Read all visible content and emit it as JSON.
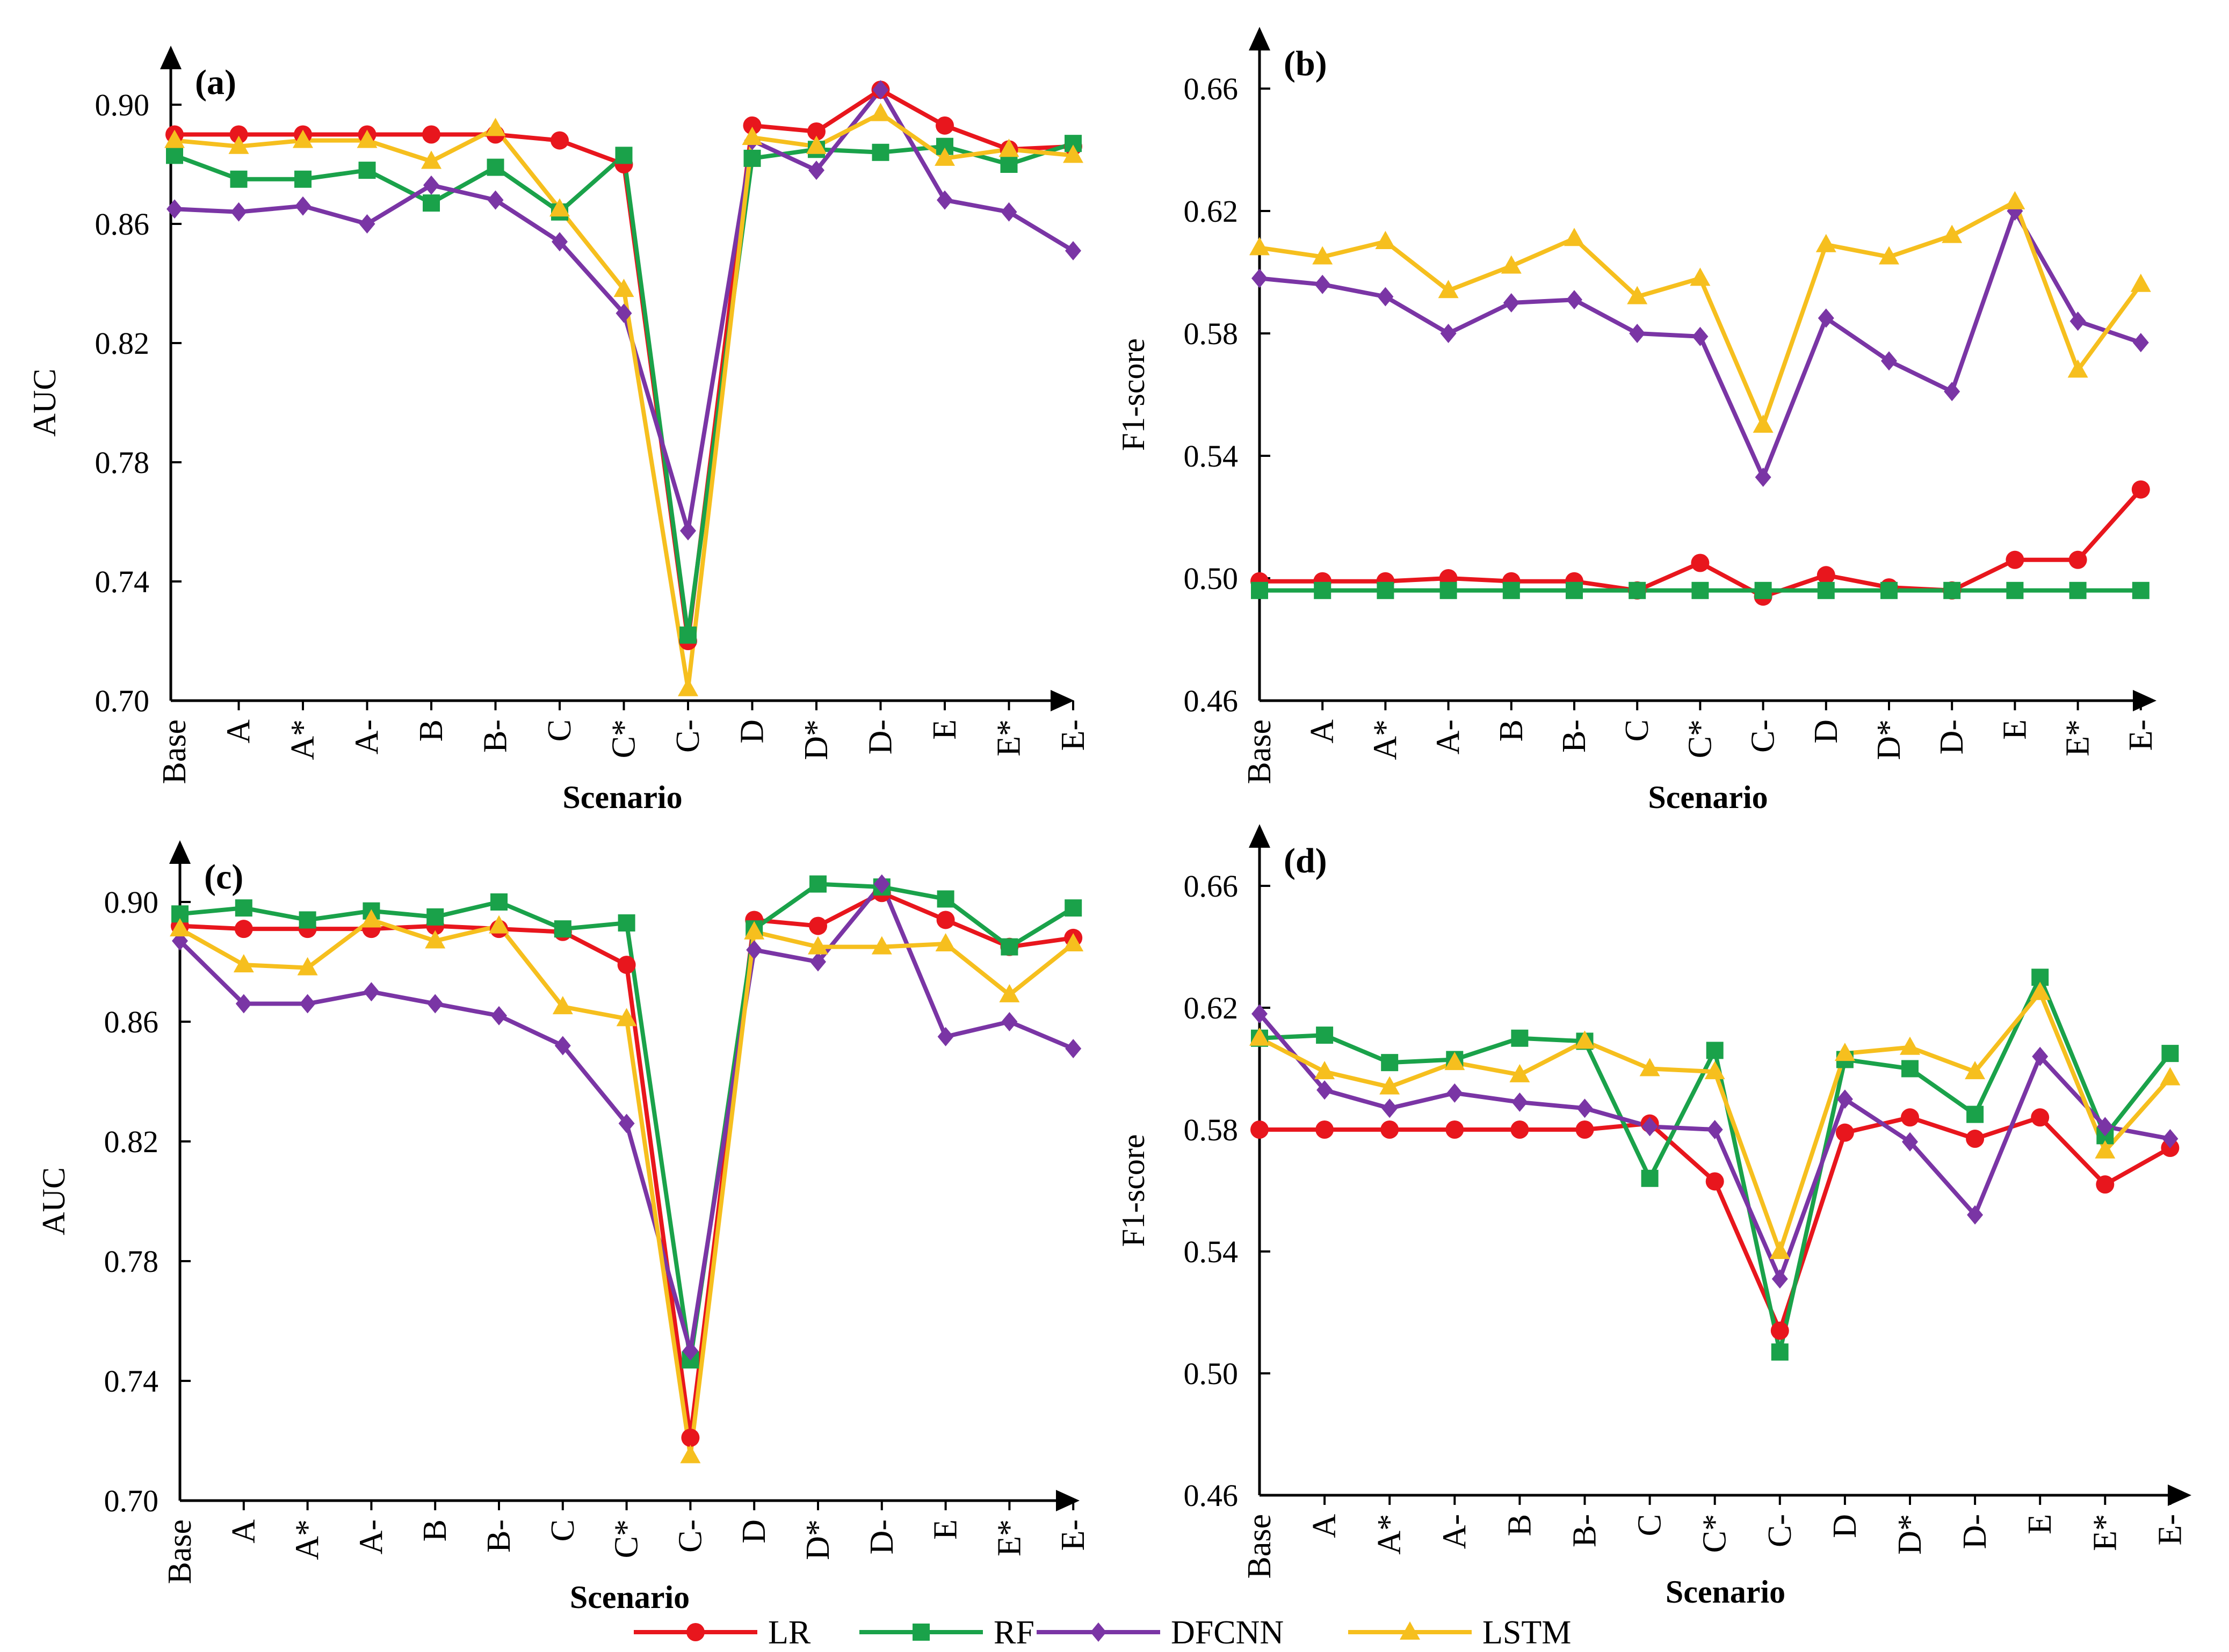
{
  "chart_data": [
    {
      "type": "line",
      "panel_label": "(a)",
      "xlabel": "Scenario",
      "ylabel": "AUC",
      "ylim": [
        0.7,
        0.92
      ],
      "yticks": [
        "0.70",
        "0.74",
        "0.78",
        "0.82",
        "0.86",
        "0.90"
      ],
      "categories": [
        "Base",
        "A",
        "A*",
        "A-",
        "B",
        "B-",
        "C",
        "C*",
        "C-",
        "D",
        "D*",
        "D-",
        "E",
        "E*",
        "E-"
      ],
      "series": [
        {
          "name": "LR",
          "values": [
            0.89,
            0.89,
            0.89,
            0.89,
            0.89,
            0.89,
            0.888,
            0.88,
            0.72,
            0.893,
            0.891,
            0.905,
            0.893,
            0.885,
            0.886
          ]
        },
        {
          "name": "RF",
          "values": [
            0.883,
            0.875,
            0.875,
            0.878,
            0.867,
            0.879,
            0.864,
            0.883,
            0.722,
            0.882,
            0.885,
            0.884,
            0.886,
            0.88,
            0.887
          ]
        },
        {
          "name": "DFCNN",
          "values": [
            0.865,
            0.864,
            0.866,
            0.86,
            0.873,
            0.868,
            0.854,
            0.83,
            0.757,
            0.888,
            0.878,
            0.905,
            0.868,
            0.864,
            0.851
          ]
        },
        {
          "name": "LSTM",
          "values": [
            0.888,
            0.886,
            0.888,
            0.888,
            0.881,
            0.892,
            0.865,
            0.838,
            0.704,
            0.889,
            0.886,
            0.897,
            0.882,
            0.885,
            0.883
          ]
        }
      ]
    },
    {
      "type": "line",
      "panel_label": "(b)",
      "xlabel": "Scenario",
      "ylabel": "F1-score",
      "ylim": [
        0.46,
        0.67
      ],
      "yticks": [
        "0.46",
        "0.50",
        "0.54",
        "0.58",
        "0.62",
        "0.66"
      ],
      "categories": [
        "Base",
        "A",
        "A*",
        "A-",
        "B",
        "B-",
        "C",
        "C*",
        "C-",
        "D",
        "D*",
        "D-",
        "E",
        "E*",
        "E-"
      ],
      "series": [
        {
          "name": "LR",
          "values": [
            0.499,
            0.499,
            0.499,
            0.5,
            0.499,
            0.499,
            0.496,
            0.505,
            0.494,
            0.501,
            0.497,
            0.496,
            0.506,
            0.506,
            0.529
          ]
        },
        {
          "name": "RF",
          "values": [
            0.496,
            0.496,
            0.496,
            0.496,
            0.496,
            0.496,
            0.496,
            0.496,
            0.496,
            0.496,
            0.496,
            0.496,
            0.496,
            0.496,
            0.496
          ]
        },
        {
          "name": "DFCNN",
          "values": [
            0.598,
            0.596,
            0.592,
            0.58,
            0.59,
            0.591,
            0.58,
            0.579,
            0.533,
            0.585,
            0.571,
            0.561,
            0.62,
            0.584,
            0.577
          ]
        },
        {
          "name": "LSTM",
          "values": [
            0.608,
            0.605,
            0.61,
            0.594,
            0.602,
            0.611,
            0.592,
            0.598,
            0.55,
            0.609,
            0.605,
            0.612,
            0.623,
            0.568,
            0.596
          ]
        }
      ]
    },
    {
      "type": "line",
      "panel_label": "(c)",
      "xlabel": "Scenario",
      "ylabel": "AUC",
      "ylim": [
        0.7,
        0.92
      ],
      "yticks": [
        "0.70",
        "0.74",
        "0.78",
        "0.82",
        "0.86",
        "0.90"
      ],
      "categories": [
        "Base",
        "A",
        "A*",
        "A-",
        "B",
        "B-",
        "C",
        "C*",
        "C-",
        "D",
        "D*",
        "D-",
        "E",
        "E*",
        "E-"
      ],
      "series": [
        {
          "name": "LR",
          "values": [
            0.892,
            0.891,
            0.891,
            0.891,
            0.892,
            0.891,
            0.89,
            0.879,
            0.721,
            0.894,
            0.892,
            0.903,
            0.894,
            0.885,
            0.888
          ]
        },
        {
          "name": "RF",
          "values": [
            0.896,
            0.898,
            0.894,
            0.897,
            0.895,
            0.9,
            0.891,
            0.893,
            0.747,
            0.891,
            0.906,
            0.905,
            0.901,
            0.885,
            0.898
          ]
        },
        {
          "name": "DFCNN",
          "values": [
            0.887,
            0.866,
            0.866,
            0.87,
            0.866,
            0.862,
            0.852,
            0.826,
            0.75,
            0.884,
            0.88,
            0.906,
            0.855,
            0.86,
            0.851
          ]
        },
        {
          "name": "LSTM",
          "values": [
            0.891,
            0.879,
            0.878,
            0.894,
            0.887,
            0.892,
            0.865,
            0.861,
            0.715,
            0.89,
            0.885,
            0.885,
            0.886,
            0.869,
            0.886
          ]
        }
      ]
    },
    {
      "type": "line",
      "panel_label": "(d)",
      "xlabel": "Scenario",
      "ylabel": "F1-score",
      "ylim": [
        0.46,
        0.67
      ],
      "yticks": [
        "0.46",
        "0.50",
        "0.54",
        "0.58",
        "0.62",
        "0.66"
      ],
      "categories": [
        "Base",
        "A",
        "A*",
        "A-",
        "B",
        "B-",
        "C",
        "C*",
        "C-",
        "D",
        "D*",
        "D-",
        "E",
        "E*",
        "E-"
      ],
      "series": [
        {
          "name": "LR",
          "values": [
            0.58,
            0.58,
            0.58,
            0.58,
            0.58,
            0.58,
            0.582,
            0.563,
            0.514,
            0.579,
            0.584,
            0.577,
            0.584,
            0.562,
            0.574
          ]
        },
        {
          "name": "RF",
          "values": [
            0.61,
            0.611,
            0.602,
            0.603,
            0.61,
            0.609,
            0.564,
            0.606,
            0.507,
            0.603,
            0.6,
            0.585,
            0.63,
            0.578,
            0.605
          ]
        },
        {
          "name": "DFCNN",
          "values": [
            0.618,
            0.593,
            0.587,
            0.592,
            0.589,
            0.587,
            0.581,
            0.58,
            0.531,
            0.59,
            0.576,
            0.552,
            0.604,
            0.581,
            0.577
          ]
        },
        {
          "name": "LSTM",
          "values": [
            0.61,
            0.599,
            0.594,
            0.602,
            0.598,
            0.609,
            0.6,
            0.599,
            0.54,
            0.605,
            0.607,
            0.599,
            0.625,
            0.573,
            0.597
          ]
        }
      ]
    }
  ],
  "legend": {
    "position": "bottom-center",
    "items": [
      {
        "name": "LR",
        "color": "#e8161d",
        "marker": "circle"
      },
      {
        "name": "RF",
        "color": "#1aa24a",
        "marker": "square"
      },
      {
        "name": "DFCNN",
        "color": "#7a35a5",
        "marker": "diamond"
      },
      {
        "name": "LSTM",
        "color": "#f6bf1e",
        "marker": "triangle"
      }
    ]
  }
}
